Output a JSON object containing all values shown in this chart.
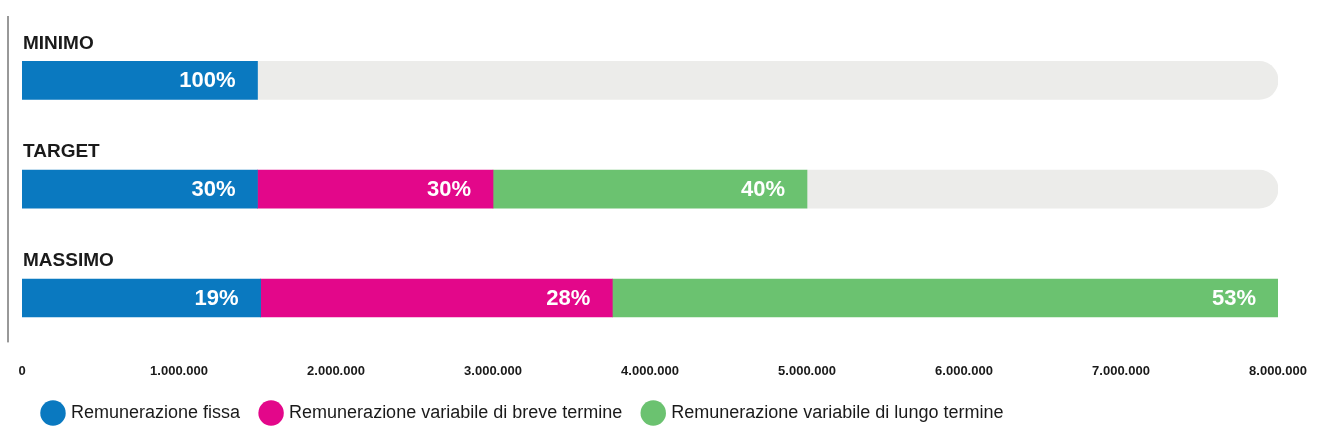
{
  "chart_data": {
    "type": "bar",
    "orientation": "horizontal",
    "stacked": true,
    "categories": [
      "MINIMO",
      "TARGET",
      "MASSIMO"
    ],
    "series": [
      {
        "name": "Remunerazione fissa",
        "color": "#0a79c0",
        "values": [
          1500000,
          1500000,
          1520000
        ]
      },
      {
        "name": "Remunerazione variabile di breve termine",
        "color": "#e3078a",
        "values": [
          null,
          1500000,
          2240000
        ]
      },
      {
        "name": "Remunerazione variabile di lungo termine",
        "color": "#6bc270",
        "values": [
          null,
          2000000,
          4240000
        ]
      },
      {
        "color": "#ececea",
        "values": [
          6500000,
          3000000,
          null
        ]
      }
    ],
    "annotations": [
      {
        "text": "100%",
        "x": 1500000,
        "y": "MINIMO"
      },
      {
        "text": "30%",
        "x": 1500000,
        "y": "TARGET"
      },
      {
        "text": "30%",
        "x": 3000000,
        "y": "TARGET"
      },
      {
        "text": "40%",
        "x": 5000000,
        "y": "TARGET"
      },
      {
        "text": "19%",
        "x": 1520000,
        "y": "MASSIMO"
      },
      {
        "text": "28%",
        "x": 3760000,
        "y": "MASSIMO"
      },
      {
        "text": "53%",
        "x": 8000000,
        "y": "MASSIMO"
      }
    ],
    "xlim": [
      0,
      8000000
    ],
    "xticks": [
      0,
      {
        "value": 1000000,
        "label": "1.000.000"
      },
      {
        "value": 2000000,
        "label": "2.000.000"
      },
      {
        "value": 3000000,
        "label": "3.000.000"
      },
      {
        "value": 4000000,
        "label": "4.000.000"
      },
      {
        "value": 5000000,
        "label": "5.000.000"
      },
      {
        "value": 6000000,
        "label": "6.000.000"
      },
      {
        "value": 7000000,
        "label": "7.000.000"
      },
      {
        "value": 8000000,
        "label": "8.000.000"
      }
    ],
    "grid": false,
    "legend": "bottom left"
  }
}
